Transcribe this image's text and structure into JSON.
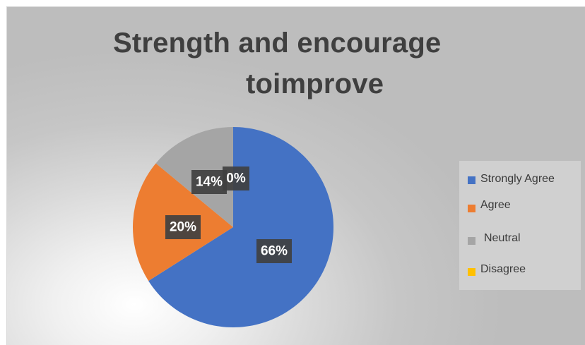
{
  "chart_data": {
    "type": "pie",
    "title": "Strength and encourage toimprove",
    "title_lines": [
      "Strength and encourage",
      "toimprove"
    ],
    "categories": [
      "Strongly Agree",
      "Agree",
      "Neutral",
      "Disagree"
    ],
    "values": [
      66,
      20,
      14,
      0
    ],
    "labels": [
      "66%",
      "20%",
      "14%",
      "0%"
    ],
    "colors": [
      "#4472C4",
      "#ED7D31",
      "#A5A5A5",
      "#FFC000"
    ],
    "legend_position": "right"
  }
}
